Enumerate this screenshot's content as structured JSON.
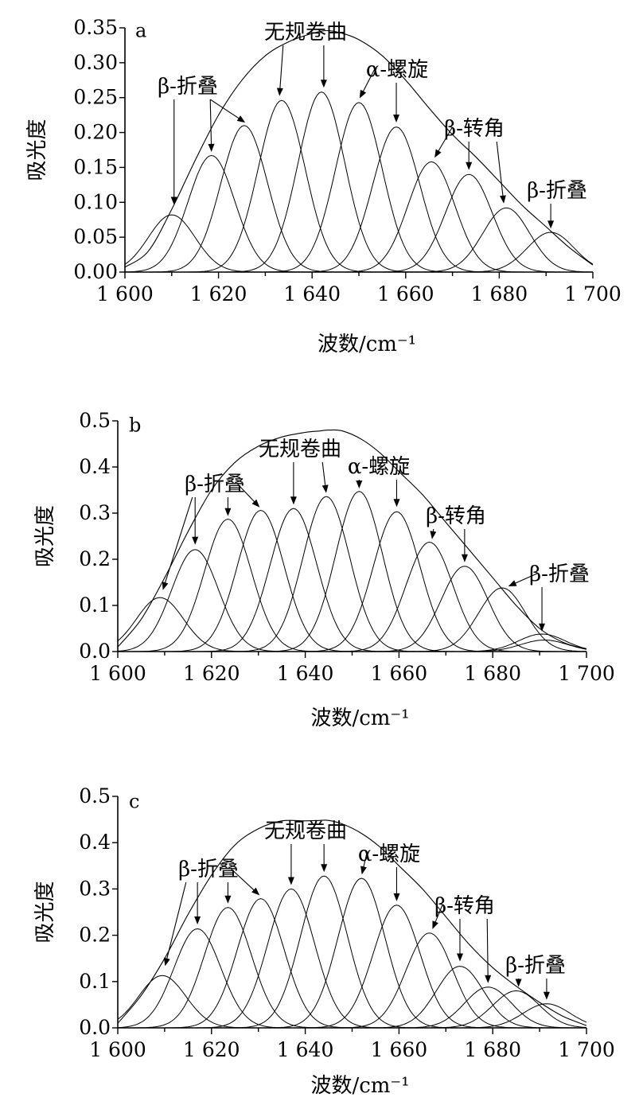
{
  "chart_data": [
    {
      "type": "line",
      "panel_label": "a",
      "xlabel": "波数/cm⁻¹",
      "ylabel": "吸光度",
      "xlim": [
        1600,
        1700
      ],
      "ylim": [
        0,
        0.35
      ],
      "x_ticks": [
        "1 600",
        "1 620",
        "1 640",
        "1 660",
        "1 680",
        "1 700"
      ],
      "y_ticks": [
        "0.00",
        "0.05",
        "0.10",
        "0.15",
        "0.20",
        "0.25",
        "0.30",
        "0.35"
      ],
      "peaks": [
        {
          "center": 1610,
          "height": 0.082
        },
        {
          "center": 1618.5,
          "height": 0.167
        },
        {
          "center": 1625.5,
          "height": 0.21
        },
        {
          "center": 1633.5,
          "height": 0.246
        },
        {
          "center": 1642,
          "height": 0.258
        },
        {
          "center": 1650,
          "height": 0.243
        },
        {
          "center": 1658,
          "height": 0.208
        },
        {
          "center": 1665.5,
          "height": 0.158
        },
        {
          "center": 1673.5,
          "height": 0.14
        },
        {
          "center": 1681.5,
          "height": 0.092
        },
        {
          "center": 1691,
          "height": 0.057
        }
      ],
      "envelope": [
        [
          1600,
          0.007
        ],
        [
          1605,
          0.03
        ],
        [
          1610,
          0.09
        ],
        [
          1615,
          0.16
        ],
        [
          1620,
          0.225
        ],
        [
          1625,
          0.275
        ],
        [
          1630,
          0.31
        ],
        [
          1635,
          0.33
        ],
        [
          1640,
          0.342
        ],
        [
          1643,
          0.346
        ],
        [
          1646,
          0.343
        ],
        [
          1650,
          0.333
        ],
        [
          1655,
          0.31
        ],
        [
          1660,
          0.275
        ],
        [
          1665,
          0.235
        ],
        [
          1670,
          0.197
        ],
        [
          1675,
          0.165
        ],
        [
          1680,
          0.13
        ],
        [
          1685,
          0.095
        ],
        [
          1690,
          0.065
        ],
        [
          1695,
          0.035
        ],
        [
          1700,
          0.01
        ]
      ],
      "annotations": [
        {
          "text": "β-折叠",
          "arrow_to": [
            [
              1610.5,
              0.094
            ],
            [
              1618.5,
              0.17
            ],
            [
              1626,
              0.213
            ]
          ]
        },
        {
          "text": "无规卷曲",
          "arrow_to": [
            [
              1633,
              0.25
            ],
            [
              1642.5,
              0.262
            ]
          ]
        },
        {
          "text": "α-螺旋",
          "arrow_to": [
            [
              1650,
              0.247
            ],
            [
              1658,
              0.212
            ]
          ]
        },
        {
          "text": "β-转角",
          "arrow_to": [
            [
              1666,
              0.162
            ],
            [
              1673.5,
              0.144
            ],
            [
              1681,
              0.096
            ]
          ]
        },
        {
          "text": "β-折叠",
          "arrow_to": [
            [
              1691,
              0.06
            ]
          ]
        }
      ]
    },
    {
      "type": "line",
      "panel_label": "b",
      "xlabel": "波数/cm⁻¹",
      "ylabel": "吸光度",
      "xlim": [
        1600,
        1700
      ],
      "ylim": [
        0,
        0.5
      ],
      "x_ticks": [
        "1 600",
        "1 620",
        "1 640",
        "1 660",
        "1 680",
        "1 700"
      ],
      "y_ticks": [
        "0.0",
        "0.1",
        "0.2",
        "0.3",
        "0.4",
        "0.5"
      ],
      "peaks": [
        {
          "center": 1609,
          "height": 0.117
        },
        {
          "center": 1616.5,
          "height": 0.221
        },
        {
          "center": 1623.5,
          "height": 0.287
        },
        {
          "center": 1630.5,
          "height": 0.306
        },
        {
          "center": 1637.5,
          "height": 0.31
        },
        {
          "center": 1644.5,
          "height": 0.336
        },
        {
          "center": 1651.5,
          "height": 0.347
        },
        {
          "center": 1659.5,
          "height": 0.303
        },
        {
          "center": 1666.5,
          "height": 0.237
        },
        {
          "center": 1674,
          "height": 0.185
        },
        {
          "center": 1682,
          "height": 0.138
        },
        {
          "center": 1690.5,
          "height": 0.038
        },
        {
          "center": 1691,
          "height": 0.025
        }
      ],
      "envelope": [
        [
          1600,
          0.01
        ],
        [
          1605,
          0.07
        ],
        [
          1610,
          0.16
        ],
        [
          1615,
          0.26
        ],
        [
          1620,
          0.35
        ],
        [
          1625,
          0.41
        ],
        [
          1630,
          0.445
        ],
        [
          1635,
          0.465
        ],
        [
          1640,
          0.475
        ],
        [
          1643,
          0.478
        ],
        [
          1645,
          0.48
        ],
        [
          1648,
          0.478
        ],
        [
          1652,
          0.46
        ],
        [
          1656,
          0.43
        ],
        [
          1660,
          0.39
        ],
        [
          1665,
          0.34
        ],
        [
          1670,
          0.28
        ],
        [
          1675,
          0.22
        ],
        [
          1680,
          0.16
        ],
        [
          1685,
          0.1
        ],
        [
          1690,
          0.05
        ],
        [
          1695,
          0.02
        ],
        [
          1700,
          0.005
        ]
      ],
      "annotations": [
        {
          "text": "β-折叠",
          "arrow_to": [
            [
              1609.5,
              0.13
            ],
            [
              1616.5,
              0.228
            ],
            [
              1623.5,
              0.29
            ],
            [
              1630.5,
              0.31
            ]
          ]
        },
        {
          "text": "无规卷曲",
          "arrow_to": [
            [
              1637.5,
              0.315
            ],
            [
              1644.5,
              0.34
            ]
          ]
        },
        {
          "text": "α-螺旋",
          "arrow_to": [
            [
              1651.5,
              0.35
            ],
            [
              1659.5,
              0.31
            ]
          ]
        },
        {
          "text": "β-转角",
          "arrow_to": [
            [
              1667,
              0.24
            ],
            [
              1674,
              0.19
            ]
          ]
        },
        {
          "text": "β-折叠",
          "arrow_to": [
            [
              1683,
              0.14
            ],
            [
              1690.5,
              0.04
            ]
          ]
        }
      ]
    },
    {
      "type": "line",
      "panel_label": "c",
      "xlabel": "波数/cm⁻¹",
      "ylabel": "吸光度",
      "xlim": [
        1600,
        1700
      ],
      "ylim": [
        0,
        0.5
      ],
      "x_ticks": [
        "1 600",
        "1 620",
        "1 640",
        "1 660",
        "1 680",
        "1 700"
      ],
      "y_ticks": [
        "0.0",
        "0.1",
        "0.2",
        "0.3",
        "0.4",
        "0.5"
      ],
      "peaks": [
        {
          "center": 1609.5,
          "height": 0.113
        },
        {
          "center": 1617,
          "height": 0.214
        },
        {
          "center": 1623.5,
          "height": 0.26
        },
        {
          "center": 1630.5,
          "height": 0.279
        },
        {
          "center": 1637,
          "height": 0.3
        },
        {
          "center": 1644,
          "height": 0.328
        },
        {
          "center": 1652,
          "height": 0.323
        },
        {
          "center": 1659.5,
          "height": 0.265
        },
        {
          "center": 1666.5,
          "height": 0.205
        },
        {
          "center": 1673,
          "height": 0.133
        },
        {
          "center": 1679,
          "height": 0.088
        },
        {
          "center": 1685,
          "height": 0.08
        },
        {
          "center": 1691.5,
          "height": 0.052
        }
      ],
      "envelope": [
        [
          1600,
          0.01
        ],
        [
          1605,
          0.07
        ],
        [
          1610,
          0.15
        ],
        [
          1615,
          0.245
        ],
        [
          1620,
          0.33
        ],
        [
          1625,
          0.395
        ],
        [
          1630,
          0.43
        ],
        [
          1635,
          0.447
        ],
        [
          1640,
          0.447
        ],
        [
          1643,
          0.448
        ],
        [
          1645,
          0.448
        ],
        [
          1648,
          0.44
        ],
        [
          1652,
          0.42
        ],
        [
          1656,
          0.39
        ],
        [
          1660,
          0.35
        ],
        [
          1665,
          0.3
        ],
        [
          1670,
          0.24
        ],
        [
          1675,
          0.18
        ],
        [
          1680,
          0.13
        ],
        [
          1685,
          0.09
        ],
        [
          1690,
          0.055
        ],
        [
          1695,
          0.025
        ],
        [
          1700,
          0.005
        ]
      ],
      "annotations": [
        {
          "text": "β-折叠",
          "arrow_to": [
            [
              1610,
              0.13
            ],
            [
              1617,
              0.22
            ],
            [
              1623.5,
              0.265
            ],
            [
              1630.5,
              0.284
            ]
          ]
        },
        {
          "text": "无规卷曲",
          "arrow_to": [
            [
              1637,
              0.305
            ],
            [
              1644,
              0.333
            ]
          ]
        },
        {
          "text": "α-螺旋",
          "arrow_to": [
            [
              1652,
              0.328
            ],
            [
              1659.5,
              0.27
            ]
          ]
        },
        {
          "text": "β-转角",
          "arrow_to": [
            [
              1667,
              0.21
            ],
            [
              1673,
              0.14
            ],
            [
              1679,
              0.093
            ]
          ]
        },
        {
          "text": "β-折叠",
          "arrow_to": [
            [
              1685.5,
              0.085
            ],
            [
              1691.5,
              0.057
            ]
          ]
        }
      ]
    }
  ]
}
